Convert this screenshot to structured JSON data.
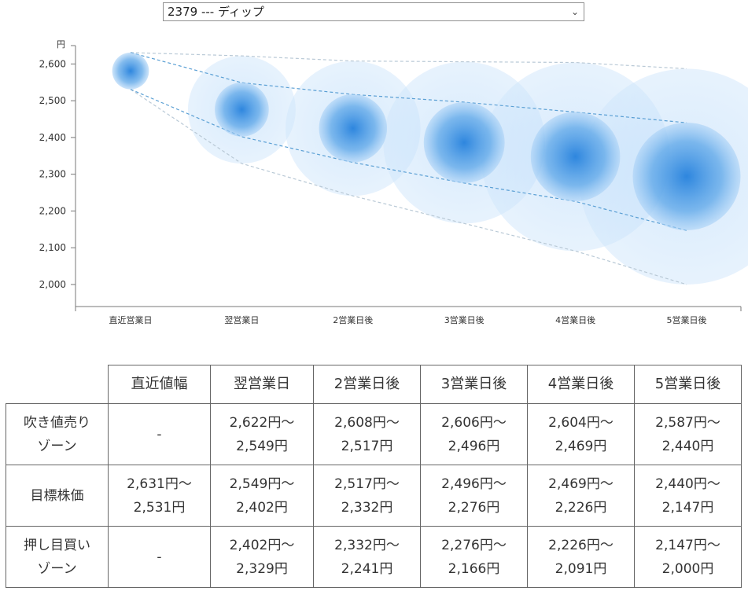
{
  "selector": {
    "value": "2379 --- ディップ"
  },
  "chart_data": {
    "type": "bubble-range",
    "ylabel": "円",
    "ylim": [
      1940,
      2650
    ],
    "yticks": [
      2000,
      2100,
      2200,
      2300,
      2400,
      2500,
      2600
    ],
    "categories": [
      "直近営業日",
      "翌営業日",
      "2営業日後",
      "3営業日後",
      "4営業日後",
      "5営業日後"
    ],
    "center": [
      2581,
      2476,
      2425,
      2386,
      2348,
      2294
    ],
    "inner_range": [
      [
        2631,
        2531
      ],
      [
        2549,
        2402
      ],
      [
        2517,
        2332
      ],
      [
        2496,
        2276
      ],
      [
        2469,
        2226
      ],
      [
        2440,
        2147
      ]
    ],
    "outer_range": [
      [
        2631,
        2531
      ],
      [
        2622,
        2329
      ],
      [
        2608,
        2241
      ],
      [
        2606,
        2166
      ],
      [
        2604,
        2091
      ],
      [
        2587,
        2000
      ]
    ],
    "colors": {
      "core": "#2e86de",
      "halo": "#cfe6fb",
      "line_inner": "#5a9fd4",
      "line_outer": "#b9c9d6"
    }
  },
  "table": {
    "headers": [
      "直近値幅",
      "翌営業日",
      "2営業日後",
      "3営業日後",
      "4営業日後",
      "5営業日後"
    ],
    "rows": [
      {
        "label_l1": "吹き値売り",
        "label_l2": "ゾーン",
        "cells": [
          {
            "l1": "-",
            "l2": ""
          },
          {
            "l1": "2,622円～",
            "l2": "2,549円"
          },
          {
            "l1": "2,608円～",
            "l2": "2,517円"
          },
          {
            "l1": "2,606円～",
            "l2": "2,496円"
          },
          {
            "l1": "2,604円～",
            "l2": "2,469円"
          },
          {
            "l1": "2,587円～",
            "l2": "2,440円"
          }
        ]
      },
      {
        "label_l1": "目標株価",
        "label_l2": "",
        "cells": [
          {
            "l1": "2,631円～",
            "l2": "2,531円"
          },
          {
            "l1": "2,549円～",
            "l2": "2,402円"
          },
          {
            "l1": "2,517円～",
            "l2": "2,332円"
          },
          {
            "l1": "2,496円～",
            "l2": "2,276円"
          },
          {
            "l1": "2,469円～",
            "l2": "2,226円"
          },
          {
            "l1": "2,440円～",
            "l2": "2,147円"
          }
        ]
      },
      {
        "label_l1": "押し目買い",
        "label_l2": "ゾーン",
        "cells": [
          {
            "l1": "-",
            "l2": ""
          },
          {
            "l1": "2,402円～",
            "l2": "2,329円"
          },
          {
            "l1": "2,332円～",
            "l2": "2,241円"
          },
          {
            "l1": "2,276円～",
            "l2": "2,166円"
          },
          {
            "l1": "2,226円～",
            "l2": "2,091円"
          },
          {
            "l1": "2,147円～",
            "l2": "2,000円"
          }
        ]
      }
    ]
  }
}
